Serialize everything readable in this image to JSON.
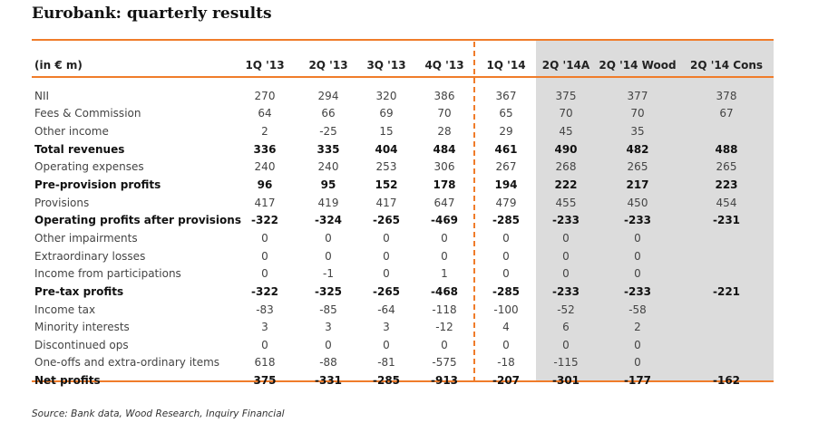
{
  "title": "Eurobank: quarterly results",
  "columns": [
    "(in € m)",
    "1Q '13",
    "2Q '13",
    "3Q '13",
    "4Q '13",
    "1Q '14",
    "2Q '14A",
    "2Q '14 Wood",
    "2Q '14 Cons"
  ],
  "rows": [
    {
      "label": "NII",
      "values": [
        "270",
        "294",
        "320",
        "386",
        "367",
        "375",
        "377",
        "378"
      ]
    },
    {
      "label": "Fees & Commission",
      "values": [
        "64",
        "66",
        "69",
        "70",
        "65",
        "70",
        "70",
        "67"
      ]
    },
    {
      "label": "Other income",
      "values": [
        "2",
        "-25",
        "15",
        "28",
        "29",
        "45",
        "35",
        ""
      ]
    },
    {
      "label": "Total revenues",
      "values": [
        "336",
        "335",
        "404",
        "484",
        "461",
        "490",
        "482",
        "488"
      ]
    },
    {
      "label": "Operating expenses",
      "values": [
        "240",
        "240",
        "253",
        "306",
        "267",
        "268",
        "265",
        "265"
      ]
    },
    {
      "label": "Pre-provision profits",
      "values": [
        "96",
        "95",
        "152",
        "178",
        "194",
        "222",
        "217",
        "223"
      ]
    },
    {
      "label": "Provisions",
      "values": [
        "417",
        "419",
        "417",
        "647",
        "479",
        "455",
        "450",
        "454"
      ]
    },
    {
      "label": "Operating profits after provisions",
      "values": [
        "-322",
        "-324",
        "-265",
        "-469",
        "-285",
        "-233",
        "-233",
        "-231"
      ]
    },
    {
      "label": "Other impairments",
      "values": [
        "0",
        "0",
        "0",
        "0",
        "0",
        "0",
        "0",
        ""
      ]
    },
    {
      "label": "Extraordinary losses",
      "values": [
        "0",
        "0",
        "0",
        "0",
        "0",
        "0",
        "0",
        ""
      ]
    },
    {
      "label": "Income from participations",
      "values": [
        "0",
        "-1",
        "0",
        "1",
        "0",
        "0",
        "0",
        ""
      ]
    },
    {
      "label": "Pre-tax profits",
      "values": [
        "-322",
        "-325",
        "-265",
        "-468",
        "-285",
        "-233",
        "-233",
        "-221"
      ]
    },
    {
      "label": "Income tax",
      "values": [
        "-83",
        "-85",
        "-64",
        "-118",
        "-100",
        "-52",
        "-58",
        ""
      ]
    },
    {
      "label": "Minority interests",
      "values": [
        "3",
        "3",
        "3",
        "-12",
        "4",
        "6",
        "2",
        ""
      ]
    },
    {
      "label": "Discontinued ops",
      "values": [
        "0",
        "0",
        "0",
        "0",
        "0",
        "0",
        "0",
        ""
      ]
    },
    {
      "label": "One-offs and extra-ordinary items",
      "values": [
        "618",
        "-88",
        "-81",
        "-575",
        "-18",
        "-115",
        "0",
        ""
      ]
    },
    {
      "label": "Net profits",
      "values": [
        "375",
        "-331",
        "-285",
        "-913",
        "-207",
        "-301",
        "-177",
        "-162"
      ]
    }
  ],
  "source": "Source: Bank data, Wood Research, Inquiry Financial",
  "colors": {
    "accent": "#f07c2a",
    "shade": "#dcdcdc"
  }
}
